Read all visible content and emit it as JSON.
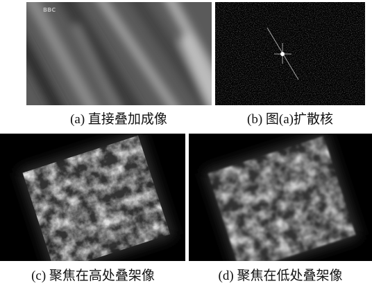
{
  "panels": [
    {
      "caption": "(a) 直接叠加成像",
      "watermark": "BBC"
    },
    {
      "caption": "(b) 图(a)扩散核"
    },
    {
      "caption": "(c) 聚焦在高处叠架像"
    },
    {
      "caption": "(d) 聚焦在低处叠架像"
    }
  ]
}
